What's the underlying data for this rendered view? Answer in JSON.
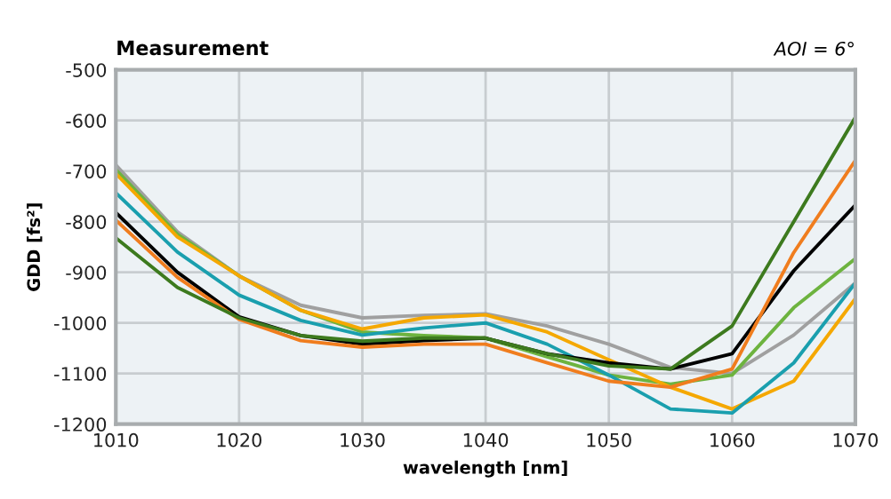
{
  "chart_data": {
    "type": "line",
    "title": "Measurement",
    "annotations": [
      "AOI = 6°"
    ],
    "xlabel": "wavelength [nm]",
    "ylabel": "GDD [fs²]",
    "x": [
      1010,
      1015,
      1020,
      1025,
      1030,
      1035,
      1040,
      1045,
      1050,
      1055,
      1060,
      1065,
      1070
    ],
    "series": [
      {
        "color": "#a0a0a0",
        "values": [
          -688,
          -820,
          -907,
          -965,
          -990,
          -985,
          -982,
          -1006,
          -1042,
          -1088,
          -1100,
          -1024,
          -921
        ]
      },
      {
        "color": "#6db33f",
        "values": [
          -697,
          -825,
          -907,
          -975,
          -1018,
          -1025,
          -1030,
          -1067,
          -1103,
          -1121,
          -1103,
          -970,
          -873
        ]
      },
      {
        "color": "#f5a800",
        "values": [
          -705,
          -830,
          -907,
          -975,
          -1012,
          -990,
          -984,
          -1018,
          -1073,
          -1127,
          -1170,
          -1115,
          -952
        ]
      },
      {
        "color": "#1a9fae",
        "values": [
          -743,
          -860,
          -945,
          -995,
          -1024,
          -1010,
          -1000,
          -1042,
          -1103,
          -1170,
          -1178,
          -1079,
          -921
        ]
      },
      {
        "color": "#000000",
        "values": [
          -782,
          -900,
          -988,
          -1025,
          -1042,
          -1035,
          -1030,
          -1061,
          -1079,
          -1091,
          -1061,
          -897,
          -767
        ]
      },
      {
        "color": "#f07d1e",
        "values": [
          -797,
          -910,
          -993,
          -1035,
          -1048,
          -1042,
          -1042,
          -1079,
          -1115,
          -1127,
          -1091,
          -861,
          -679
        ]
      },
      {
        "color": "#3d7a1e",
        "values": [
          -832,
          -930,
          -990,
          -1025,
          -1036,
          -1030,
          -1030,
          -1061,
          -1085,
          -1091,
          -1006,
          -800,
          -594
        ]
      }
    ],
    "xlim": [
      1010,
      1070
    ],
    "xticks": [
      1010,
      1020,
      1030,
      1040,
      1050,
      1060,
      1070
    ],
    "ylim": [
      -1200,
      -500
    ],
    "yticks": [
      {
        "value": -1200,
        "label": "-1200"
      },
      {
        "value": -1100,
        "label": "-1100"
      },
      {
        "value": -1000,
        "label": "-1000"
      },
      {
        "value": -900,
        "label": "-900"
      },
      {
        "value": -800,
        "label": "-800"
      },
      {
        "value": -700,
        "label": "-700"
      },
      {
        "value": -600,
        "label": "-600"
      },
      {
        "value": -500,
        "label": "-500"
      }
    ],
    "grid": true,
    "marker": "none",
    "line_style": "solid"
  }
}
